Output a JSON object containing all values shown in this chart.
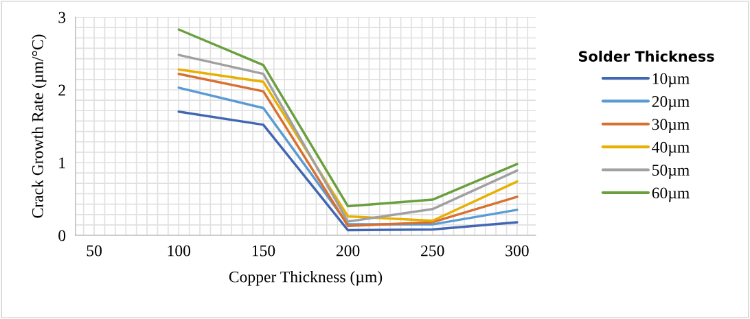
{
  "chart_data": {
    "type": "line",
    "xlabel": "Copper Thickness (µm)",
    "ylabel": "Crack Growth Rate (µm/°C)",
    "legend_title": "Solder Thickness",
    "legend": "right",
    "grid": true,
    "marker": "none",
    "line_style": "solid",
    "x": [
      100,
      150,
      200,
      250,
      300
    ],
    "xlim": [
      39,
      311
    ],
    "xticks": [
      50,
      100,
      150,
      200,
      250,
      300
    ],
    "ylim": [
      0,
      3
    ],
    "yticks": [
      0,
      1,
      2,
      3
    ],
    "series": [
      {
        "name": "10µm",
        "color": "#4267b2",
        "values": [
          1.7,
          1.52,
          0.07,
          0.08,
          0.18
        ]
      },
      {
        "name": "20µm",
        "color": "#5b9bd5",
        "values": [
          2.03,
          1.75,
          0.15,
          0.15,
          0.35
        ]
      },
      {
        "name": "30µm",
        "color": "#d8702f",
        "values": [
          2.22,
          1.98,
          0.13,
          0.18,
          0.53
        ]
      },
      {
        "name": "40µm",
        "color": "#e8b000",
        "values": [
          2.28,
          2.11,
          0.26,
          0.2,
          0.74
        ]
      },
      {
        "name": "50µm",
        "color": "#a0a0a0",
        "values": [
          2.48,
          2.22,
          0.19,
          0.36,
          0.89
        ]
      },
      {
        "name": "60µm",
        "color": "#6a9f3e",
        "values": [
          2.83,
          2.34,
          0.4,
          0.49,
          0.98
        ]
      }
    ]
  }
}
